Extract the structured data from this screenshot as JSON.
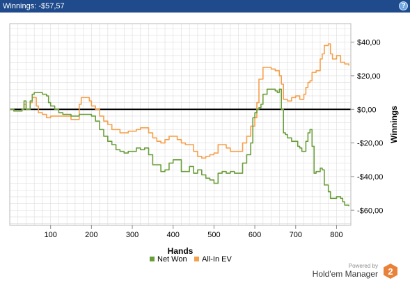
{
  "header": {
    "title": "Winnings: -$57,57",
    "help_glyph": "?"
  },
  "branding": {
    "powered": "Powered by",
    "name": "Hold'em Manager",
    "badge": "2"
  },
  "colors": {
    "net_won": "#6a9e3a",
    "allin_ev": "#f5a04a",
    "zero_line": "#000000",
    "grid": "#dcdcdc",
    "header": "#1f4b8c"
  },
  "chart_data": {
    "type": "line",
    "xlabel": "Hands",
    "ylabel": "Winnings",
    "xlim": [
      0,
      835
    ],
    "ylim": [
      -69,
      51
    ],
    "x_ticks": [
      100,
      200,
      300,
      400,
      500,
      600,
      700,
      800
    ],
    "y_ticks": [
      40,
      20,
      0,
      -20,
      -40,
      -60
    ],
    "y_tick_labels": [
      "$40,00",
      "$20,00",
      "$0,00",
      "-$20,00",
      "-$40,00",
      "-$60,00"
    ],
    "grid": true,
    "zero_line": true,
    "legend_position": "bottom",
    "series": [
      {
        "name": "Net Won",
        "color": "#6a9e3a",
        "points": [
          [
            0,
            0
          ],
          [
            10,
            -1
          ],
          [
            20,
            -1
          ],
          [
            30,
            0
          ],
          [
            35,
            5
          ],
          [
            40,
            0
          ],
          [
            50,
            5
          ],
          [
            55,
            9
          ],
          [
            60,
            10
          ],
          [
            70,
            10
          ],
          [
            80,
            9
          ],
          [
            90,
            8
          ],
          [
            95,
            4
          ],
          [
            100,
            2
          ],
          [
            110,
            0
          ],
          [
            120,
            -2
          ],
          [
            130,
            -3
          ],
          [
            140,
            -3
          ],
          [
            150,
            -4
          ],
          [
            160,
            -4
          ],
          [
            170,
            -3
          ],
          [
            180,
            -3
          ],
          [
            190,
            -3
          ],
          [
            200,
            -4
          ],
          [
            210,
            -7
          ],
          [
            220,
            -12
          ],
          [
            230,
            -16
          ],
          [
            240,
            -19
          ],
          [
            250,
            -21
          ],
          [
            260,
            -24
          ],
          [
            270,
            -25
          ],
          [
            280,
            -26
          ],
          [
            290,
            -25
          ],
          [
            300,
            -25
          ],
          [
            310,
            -23
          ],
          [
            320,
            -24
          ],
          [
            330,
            -23
          ],
          [
            340,
            -27
          ],
          [
            350,
            -33
          ],
          [
            360,
            -33
          ],
          [
            370,
            -37
          ],
          [
            380,
            -36
          ],
          [
            390,
            -32
          ],
          [
            400,
            -30
          ],
          [
            410,
            -30
          ],
          [
            420,
            -37
          ],
          [
            430,
            -37
          ],
          [
            440,
            -34
          ],
          [
            450,
            -38
          ],
          [
            460,
            -36
          ],
          [
            470,
            -39
          ],
          [
            480,
            -41
          ],
          [
            490,
            -42
          ],
          [
            500,
            -44
          ],
          [
            510,
            -38
          ],
          [
            520,
            -37
          ],
          [
            530,
            -38
          ],
          [
            540,
            -37
          ],
          [
            550,
            -38
          ],
          [
            560,
            -38
          ],
          [
            570,
            -32
          ],
          [
            580,
            -27
          ],
          [
            590,
            -20
          ],
          [
            595,
            -5
          ],
          [
            600,
            -2
          ],
          [
            605,
            0
          ],
          [
            610,
            1
          ],
          [
            615,
            3
          ],
          [
            620,
            9
          ],
          [
            630,
            12
          ],
          [
            640,
            12
          ],
          [
            650,
            11
          ],
          [
            655,
            10
          ],
          [
            660,
            12
          ],
          [
            665,
            0
          ],
          [
            670,
            -14
          ],
          [
            675,
            -15
          ],
          [
            680,
            -17
          ],
          [
            690,
            -19
          ],
          [
            700,
            -19
          ],
          [
            705,
            -22
          ],
          [
            710,
            -23
          ],
          [
            715,
            -25
          ],
          [
            720,
            -25
          ],
          [
            725,
            -19
          ],
          [
            730,
            -14
          ],
          [
            735,
            -12
          ],
          [
            740,
            -22
          ],
          [
            745,
            -38
          ],
          [
            750,
            -37
          ],
          [
            760,
            -35
          ],
          [
            765,
            -36
          ],
          [
            770,
            -45
          ],
          [
            780,
            -49
          ],
          [
            785,
            -53
          ],
          [
            790,
            -53
          ],
          [
            800,
            -52
          ],
          [
            810,
            -53
          ],
          [
            815,
            -55
          ],
          [
            820,
            -57
          ],
          [
            830,
            -57.57
          ]
        ]
      },
      {
        "name": "All-In EV",
        "color": "#f5a04a",
        "points": [
          [
            0,
            0
          ],
          [
            10,
            -1
          ],
          [
            20,
            -1
          ],
          [
            30,
            0
          ],
          [
            35,
            3
          ],
          [
            40,
            0
          ],
          [
            50,
            4
          ],
          [
            55,
            7
          ],
          [
            60,
            7
          ],
          [
            65,
            2
          ],
          [
            70,
            -2
          ],
          [
            80,
            -3
          ],
          [
            90,
            -5
          ],
          [
            95,
            -5
          ],
          [
            100,
            -4
          ],
          [
            110,
            -4
          ],
          [
            120,
            -4
          ],
          [
            130,
            -4
          ],
          [
            140,
            -4
          ],
          [
            150,
            -6
          ],
          [
            160,
            -6
          ],
          [
            170,
            3
          ],
          [
            175,
            7
          ],
          [
            180,
            7
          ],
          [
            190,
            7
          ],
          [
            195,
            5
          ],
          [
            200,
            2
          ],
          [
            210,
            0
          ],
          [
            220,
            -4
          ],
          [
            230,
            -7
          ],
          [
            240,
            -9
          ],
          [
            250,
            -12
          ],
          [
            260,
            -12
          ],
          [
            270,
            -14
          ],
          [
            280,
            -14
          ],
          [
            290,
            -13
          ],
          [
            300,
            -13
          ],
          [
            310,
            -12
          ],
          [
            320,
            -11
          ],
          [
            330,
            -11
          ],
          [
            340,
            -14
          ],
          [
            350,
            -17
          ],
          [
            360,
            -19
          ],
          [
            370,
            -20
          ],
          [
            380,
            -18
          ],
          [
            390,
            -16
          ],
          [
            400,
            -16
          ],
          [
            410,
            -18
          ],
          [
            420,
            -20
          ],
          [
            430,
            -21
          ],
          [
            440,
            -21
          ],
          [
            450,
            -25
          ],
          [
            460,
            -28
          ],
          [
            470,
            -29
          ],
          [
            480,
            -28
          ],
          [
            490,
            -27
          ],
          [
            500,
            -26
          ],
          [
            510,
            -21
          ],
          [
            520,
            -21
          ],
          [
            530,
            -23
          ],
          [
            540,
            -25
          ],
          [
            550,
            -25
          ],
          [
            560,
            -25
          ],
          [
            570,
            -20
          ],
          [
            580,
            -16
          ],
          [
            590,
            -10
          ],
          [
            600,
            -5
          ],
          [
            605,
            4
          ],
          [
            610,
            18
          ],
          [
            620,
            25
          ],
          [
            630,
            25
          ],
          [
            640,
            24
          ],
          [
            650,
            23
          ],
          [
            660,
            20
          ],
          [
            665,
            15
          ],
          [
            670,
            6
          ],
          [
            680,
            5
          ],
          [
            690,
            7
          ],
          [
            700,
            8
          ],
          [
            710,
            6
          ],
          [
            720,
            9
          ],
          [
            725,
            13
          ],
          [
            730,
            16
          ],
          [
            735,
            17
          ],
          [
            740,
            22
          ],
          [
            750,
            23
          ],
          [
            755,
            23
          ],
          [
            760,
            30
          ],
          [
            765,
            33
          ],
          [
            770,
            38
          ],
          [
            780,
            39
          ],
          [
            785,
            33
          ],
          [
            790,
            30
          ],
          [
            800,
            32
          ],
          [
            810,
            28
          ],
          [
            820,
            27
          ],
          [
            830,
            26
          ]
        ]
      }
    ]
  }
}
